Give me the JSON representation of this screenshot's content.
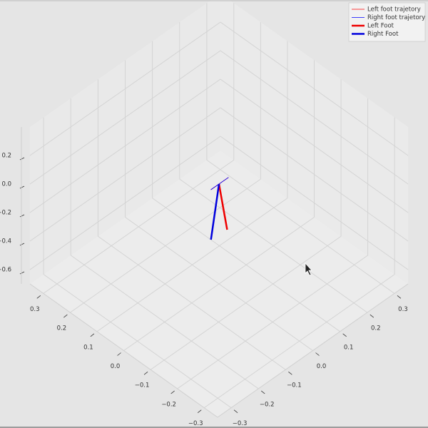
{
  "chart_data": {
    "type": "line3d",
    "series": [
      {
        "name": "Left foot trajetory",
        "color": "#ff0000",
        "width": 0.8,
        "x": [
          0,
          0
        ],
        "y": [
          -0.03,
          0.035
        ],
        "z": [
          0,
          0
        ]
      },
      {
        "name": "Right foot trajetory",
        "color": "#0000ff",
        "width": 0.8,
        "x": [
          0,
          0
        ],
        "y": [
          -0.03,
          0.035
        ],
        "z": [
          0,
          0
        ]
      },
      {
        "name": "Left Foot",
        "color": "#ee0000",
        "width": 2.5,
        "x": [
          0,
          0
        ],
        "y": [
          0,
          0.03
        ],
        "z": [
          0,
          -0.36
        ]
      },
      {
        "name": "Right Foot",
        "color": "#0000dd",
        "width": 2.5,
        "x": [
          0,
          0.03
        ],
        "y": [
          0,
          0
        ],
        "z": [
          0,
          -0.43
        ]
      }
    ],
    "xlim": [
      -0.35,
      0.35
    ],
    "ylim": [
      -0.35,
      0.35
    ],
    "zlim": [
      -0.7,
      0.4
    ],
    "xticks": [
      {
        "value": -0.3,
        "label": "−0.3"
      },
      {
        "value": -0.2,
        "label": "−0.2"
      },
      {
        "value": -0.1,
        "label": "−0.1"
      },
      {
        "value": 0,
        "label": "0.0"
      },
      0.1,
      0.2,
      0.3
    ],
    "yticks": [
      {
        "value": -0.3,
        "label": "−0.3"
      },
      {
        "value": -0.2,
        "label": "−0.2"
      },
      {
        "value": -0.1,
        "label": "−0.1"
      },
      {
        "value": 0,
        "label": "0.0"
      },
      0.1,
      0.2,
      0.3
    ],
    "zticks": [
      {
        "value": -0.6,
        "label": "−0.6"
      },
      {
        "value": -0.4,
        "label": "−0.4"
      },
      {
        "value": -0.2,
        "label": "−0.2"
      },
      {
        "value": 0,
        "label": "0.0"
      },
      0.2
    ],
    "grid": true,
    "legend": "upper right"
  }
}
